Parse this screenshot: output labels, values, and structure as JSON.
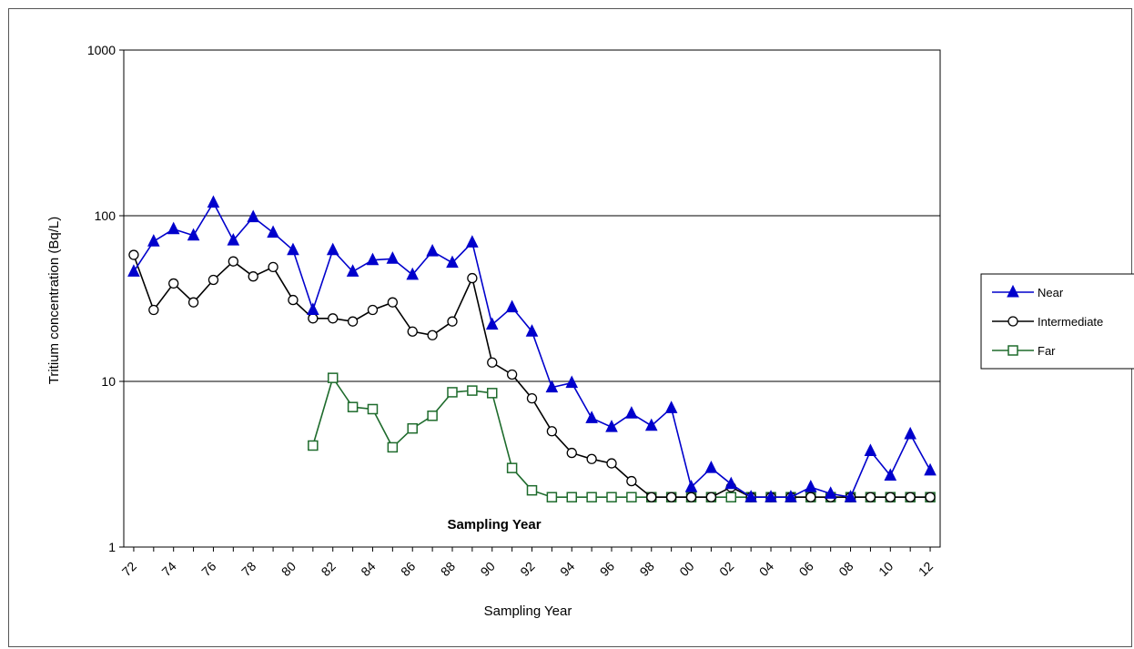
{
  "chart_data": {
    "type": "line",
    "xlabel": "Sampling Year",
    "ylabel": "Tritium concentration (Bq/L)",
    "annotation": "Sampling Year",
    "y_scale": "log",
    "ylim": [
      1,
      1000
    ],
    "y_ticks": [
      "1",
      "10",
      "100",
      "1000"
    ],
    "x_tick_labels": [
      "72",
      "74",
      "76",
      "78",
      "80",
      "82",
      "84",
      "86",
      "88",
      "90",
      "92",
      "94",
      "96",
      "98",
      "00",
      "02",
      "04",
      "06",
      "08",
      "10",
      "12"
    ],
    "grid": "horizontal major",
    "legend_position": "right",
    "series": [
      {
        "name": "Near",
        "color": "#0000cc",
        "marker": "triangle-filled",
        "points": [
          [
            1972.0,
            46
          ],
          [
            1973.0,
            70
          ],
          [
            1974.0,
            83
          ],
          [
            1975.0,
            76
          ],
          [
            1976.0,
            120
          ],
          [
            1977.0,
            71
          ],
          [
            1978.0,
            98
          ],
          [
            1979.0,
            79
          ],
          [
            1980.0,
            62
          ],
          [
            1981.0,
            27
          ],
          [
            1982.0,
            62
          ],
          [
            1983.0,
            46
          ],
          [
            1984.0,
            54
          ],
          [
            1985.0,
            55
          ],
          [
            1986.0,
            44
          ],
          [
            1987.0,
            61
          ],
          [
            1988.0,
            52
          ],
          [
            1989.0,
            69
          ],
          [
            1990.0,
            22
          ],
          [
            1991.0,
            28
          ],
          [
            1992.0,
            20
          ],
          [
            1993.0,
            9.2
          ],
          [
            1994.0,
            9.8
          ],
          [
            1995.0,
            6.0
          ],
          [
            1996.0,
            5.3
          ],
          [
            1997.0,
            6.4
          ],
          [
            1998.0,
            5.4
          ],
          [
            1999.0,
            6.9
          ],
          [
            2000.0,
            2.3
          ],
          [
            2001.0,
            3.0
          ],
          [
            2002.0,
            2.4
          ],
          [
            2003.0,
            2.0
          ],
          [
            2004.0,
            2.0
          ],
          [
            2005.0,
            2.0
          ],
          [
            2006.0,
            2.3
          ],
          [
            2007.0,
            2.1
          ],
          [
            2008.0,
            2.0
          ],
          [
            2009.0,
            3.8
          ],
          [
            2010.0,
            2.7
          ],
          [
            2011.0,
            4.8
          ],
          [
            2012.0,
            2.9
          ]
        ]
      },
      {
        "name": "Intermediate",
        "color": "#000000",
        "marker": "circle-open",
        "points": [
          [
            1972.0,
            58
          ],
          [
            1973.0,
            27
          ],
          [
            1974.0,
            39
          ],
          [
            1975.0,
            30
          ],
          [
            1976.0,
            41
          ],
          [
            1977.0,
            53
          ],
          [
            1978.0,
            43
          ],
          [
            1979.0,
            49
          ],
          [
            1980.0,
            31
          ],
          [
            1981.0,
            24
          ],
          [
            1982.0,
            24
          ],
          [
            1983.0,
            23
          ],
          [
            1984.0,
            27
          ],
          [
            1985.0,
            30
          ],
          [
            1986.0,
            20
          ],
          [
            1987.0,
            19
          ],
          [
            1988.0,
            23
          ],
          [
            1989.0,
            42
          ],
          [
            1990.0,
            13
          ],
          [
            1991.0,
            11
          ],
          [
            1992.0,
            7.9
          ],
          [
            1993.0,
            5.0
          ],
          [
            1994.0,
            3.7
          ],
          [
            1995.0,
            3.4
          ],
          [
            1996.0,
            3.2
          ],
          [
            1997.0,
            2.5
          ],
          [
            1998.0,
            2.0
          ],
          [
            1999.0,
            2.0
          ],
          [
            2000.0,
            2.0
          ],
          [
            2001.0,
            2.0
          ],
          [
            2002.0,
            2.3
          ],
          [
            2003.0,
            2.0
          ],
          [
            2004.0,
            2.0
          ],
          [
            2005.0,
            2.0
          ],
          [
            2006.0,
            2.0
          ],
          [
            2007.0,
            2.0
          ],
          [
            2008.0,
            2.0
          ],
          [
            2009.0,
            2.0
          ],
          [
            2010.0,
            2.0
          ],
          [
            2011.0,
            2.0
          ],
          [
            2012.0,
            2.0
          ]
        ]
      },
      {
        "name": "Far",
        "color": "#1e6b2c",
        "marker": "square-open",
        "points": [
          [
            1981.0,
            4.1
          ],
          [
            1982.0,
            10.5
          ],
          [
            1983.0,
            7.0
          ],
          [
            1984.0,
            6.8
          ],
          [
            1985.0,
            4.0
          ],
          [
            1986.0,
            5.2
          ],
          [
            1987.0,
            6.2
          ],
          [
            1988.0,
            8.6
          ],
          [
            1989.0,
            8.8
          ],
          [
            1990.0,
            8.5
          ],
          [
            1991.0,
            3.0
          ],
          [
            1992.0,
            2.2
          ],
          [
            1993.0,
            2.0
          ],
          [
            1994.0,
            2.0
          ],
          [
            1995.0,
            2.0
          ],
          [
            1996.0,
            2.0
          ],
          [
            1997.0,
            2.0
          ],
          [
            1998.0,
            2.0
          ],
          [
            1999.0,
            2.0
          ],
          [
            2000.0,
            2.0
          ],
          [
            2001.0,
            2.0
          ],
          [
            2002.0,
            2.0
          ],
          [
            2003.0,
            2.0
          ],
          [
            2004.0,
            2.0
          ],
          [
            2005.0,
            2.0
          ],
          [
            2006.0,
            2.0
          ],
          [
            2007.0,
            2.0
          ],
          [
            2008.0,
            2.0
          ],
          [
            2009.0,
            2.0
          ],
          [
            2010.0,
            2.0
          ],
          [
            2011.0,
            2.0
          ],
          [
            2012.0,
            2.0
          ]
        ]
      }
    ]
  }
}
